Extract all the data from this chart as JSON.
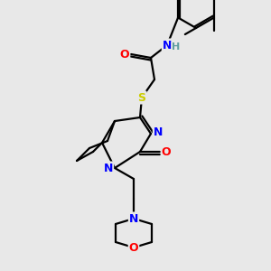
{
  "bg_color": "#e8e8e8",
  "bond_color": "#000000",
  "atom_colors": {
    "N": "#0000ff",
    "O": "#ff0000",
    "S": "#cccc00",
    "H": "#5f9ea0",
    "C": "#000000"
  },
  "figsize": [
    3.0,
    3.0
  ],
  "dpi": 100
}
